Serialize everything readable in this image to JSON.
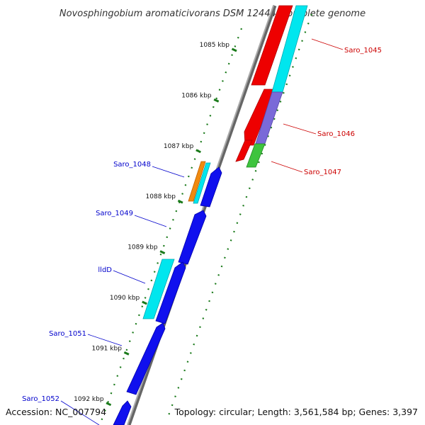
{
  "title": "Novosphingobium aromaticivorans DSM 12444, complete genome",
  "footer": {
    "accession": "Accession: NC_007794",
    "summary": "Topology: circular; Length: 3,561,584 bp; Genes: 3,397"
  },
  "colors": {
    "backbone": "#8a8a8a",
    "forward_label": "#0000cc",
    "reverse_label": "#cc0000",
    "tick_mark": "#1a7a1a",
    "dotted_guide": "#1a7a1a"
  },
  "ticks": [
    {
      "label": "1085 kbp",
      "kbp": 1085
    },
    {
      "label": "1086 kbp",
      "kbp": 1086
    },
    {
      "label": "1087 kbp",
      "kbp": 1087
    },
    {
      "label": "1088 kbp",
      "kbp": 1088
    },
    {
      "label": "1089 kbp",
      "kbp": 1089
    },
    {
      "label": "1090 kbp",
      "kbp": 1090
    },
    {
      "label": "1091 kbp",
      "kbp": 1091
    },
    {
      "label": "1092 kbp",
      "kbp": 1092
    }
  ],
  "genes": {
    "forward": [
      {
        "name": "Saro_1048",
        "start_kbp": 1087.35,
        "end_kbp": 1087.85
      },
      {
        "name": "Saro_1049",
        "start_kbp": 1088.15,
        "end_kbp": 1089.15
      },
      {
        "name": "lldD",
        "start_kbp": 1089.2,
        "end_kbp": 1090.4
      },
      {
        "name": "Saro_1051",
        "start_kbp": 1090.45,
        "end_kbp": 1091.9
      },
      {
        "name": "Saro_1052",
        "start_kbp": 1092.1,
        "end_kbp": 1092.5
      }
    ],
    "reverse": [
      {
        "name": "Saro_1045",
        "start_kbp": 1084.6,
        "end_kbp": 1086.0
      },
      {
        "name": "Saro_1046",
        "start_kbp": 1086.02,
        "end_kbp": 1087.0
      },
      {
        "name": "Saro_1047",
        "start_kbp": 1087.0,
        "end_kbp": 1087.4
      }
    ]
  }
}
